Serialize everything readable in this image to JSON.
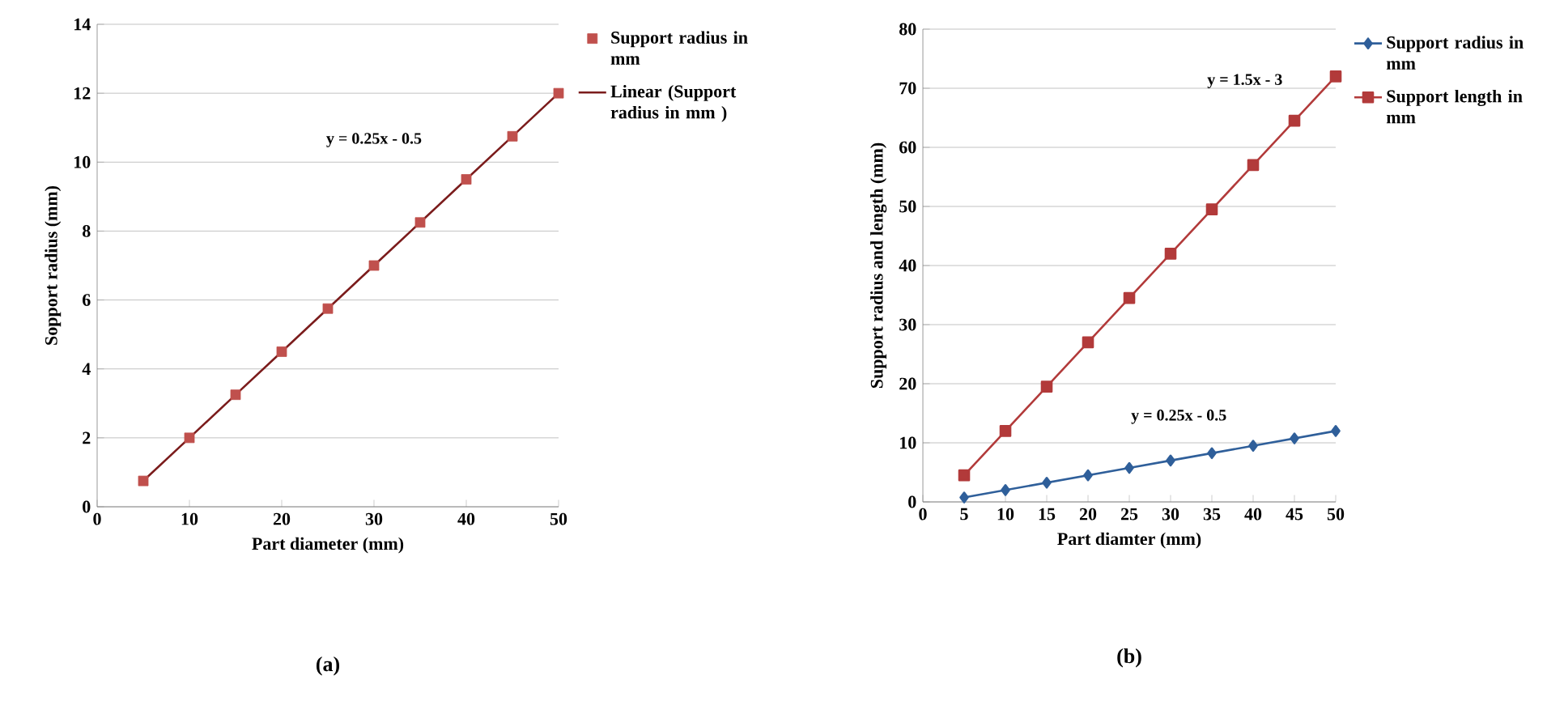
{
  "chart_data": [
    {
      "type": "line",
      "subtitle": "(a)",
      "xlabel": "Part diameter (mm)",
      "ylabel": "Sopport radius (mm)",
      "x": [
        5,
        10,
        15,
        20,
        25,
        30,
        35,
        40,
        45,
        50
      ],
      "xlim": [
        0,
        50
      ],
      "xticks": [
        0,
        10,
        20,
        30,
        40,
        50
      ],
      "ylim": [
        0,
        14
      ],
      "yticks": [
        0,
        2,
        4,
        6,
        8,
        10,
        12,
        14
      ],
      "grid": "y",
      "legend": "top right",
      "series": [
        {
          "name": "Support radius in mm",
          "type": "scatter",
          "marker": "square",
          "color": "#c0504d",
          "values": [
            0.75,
            2,
            3.25,
            4.5,
            5.75,
            7,
            8.25,
            9.5,
            10.75,
            12
          ]
        },
        {
          "name": "Linear (Support radius in mm )",
          "type": "line",
          "marker": "none",
          "color": "#7b1c1c",
          "values": [
            0.75,
            2,
            3.25,
            4.5,
            5.75,
            7,
            8.25,
            9.5,
            10.75,
            12
          ]
        }
      ],
      "annotations": [
        "y = 0.25x - 0.5"
      ]
    },
    {
      "type": "line",
      "subtitle": "(b)",
      "xlabel": "Part diamter (mm)",
      "ylabel": "Support radius  and length (mm)",
      "x": [
        5,
        10,
        15,
        20,
        25,
        30,
        35,
        40,
        45,
        50
      ],
      "xlim": [
        0,
        50
      ],
      "xticks": [
        0,
        5,
        10,
        15,
        20,
        25,
        30,
        35,
        40,
        45,
        50
      ],
      "ylim": [
        0,
        80
      ],
      "yticks": [
        0,
        10,
        20,
        30,
        40,
        50,
        60,
        70,
        80
      ],
      "grid": "y",
      "legend": "top right",
      "series": [
        {
          "name": "Support radius in mm",
          "type": "line",
          "marker": "diamond",
          "color": "#2f5f9a",
          "values": [
            0.75,
            2,
            3.25,
            4.5,
            5.75,
            7,
            8.25,
            9.5,
            10.75,
            12
          ]
        },
        {
          "name": "Support length in mm",
          "type": "line",
          "marker": "square",
          "color": "#b23a3a",
          "values": [
            4.5,
            12,
            19.5,
            27,
            34.5,
            42,
            49.5,
            57,
            64.5,
            72
          ]
        }
      ],
      "annotations": [
        "y = 1.5x - 3",
        "y = 0.25x - 0.5"
      ]
    }
  ]
}
